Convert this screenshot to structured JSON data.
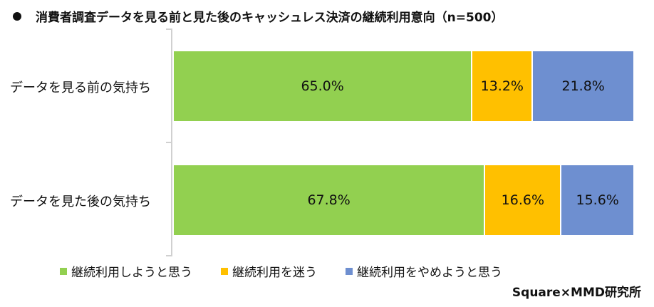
{
  "title": "消費者調査データを見る前と見た後のキャッシュレス決済の継続利用意向（n=500）",
  "source": "Square×MMD研究所",
  "colors": {
    "continue": "#92D050",
    "undecided": "#FFC000",
    "quit": "#6E8FD0"
  },
  "legend": [
    {
      "label": "継続利用しようと思う",
      "color": "#92D050"
    },
    {
      "label": "継続利用を迷う",
      "color": "#FFC000"
    },
    {
      "label": "継続利用をやめようと思う",
      "color": "#6E8FD0"
    }
  ],
  "rows": [
    {
      "label": "データを見る前の気持ち",
      "segments": [
        {
          "value": 65.0,
          "text": "65.0%"
        },
        {
          "value": 13.2,
          "text": "13.2%"
        },
        {
          "value": 21.8,
          "text": "21.8%"
        }
      ]
    },
    {
      "label": "データを見た後の気持ち",
      "segments": [
        {
          "value": 67.8,
          "text": "67.8%"
        },
        {
          "value": 16.6,
          "text": "16.6%"
        },
        {
          "value": 15.6,
          "text": "15.6%"
        }
      ]
    }
  ],
  "chart_data": {
    "type": "bar",
    "orientation": "horizontal",
    "stacked": "100%",
    "title": "消費者調査データを見る前と見た後のキャッシュレス決済の継続利用意向（n=500）",
    "categories": [
      "データを見る前の気持ち",
      "データを見た後の気持ち"
    ],
    "series": [
      {
        "name": "継続利用しようと思う",
        "values": [
          65.0,
          67.8
        ],
        "color": "#92D050"
      },
      {
        "name": "継続利用を迷う",
        "values": [
          13.2,
          16.6
        ],
        "color": "#FFC000"
      },
      {
        "name": "継続利用をやめようと思う",
        "values": [
          21.8,
          15.6
        ],
        "color": "#6E8FD0"
      }
    ],
    "xlabel": "",
    "ylabel": "",
    "xlim": [
      0,
      100
    ],
    "grid": false,
    "data_labels": true,
    "legend_position": "bottom",
    "annotation": "Square×MMD研究所"
  }
}
